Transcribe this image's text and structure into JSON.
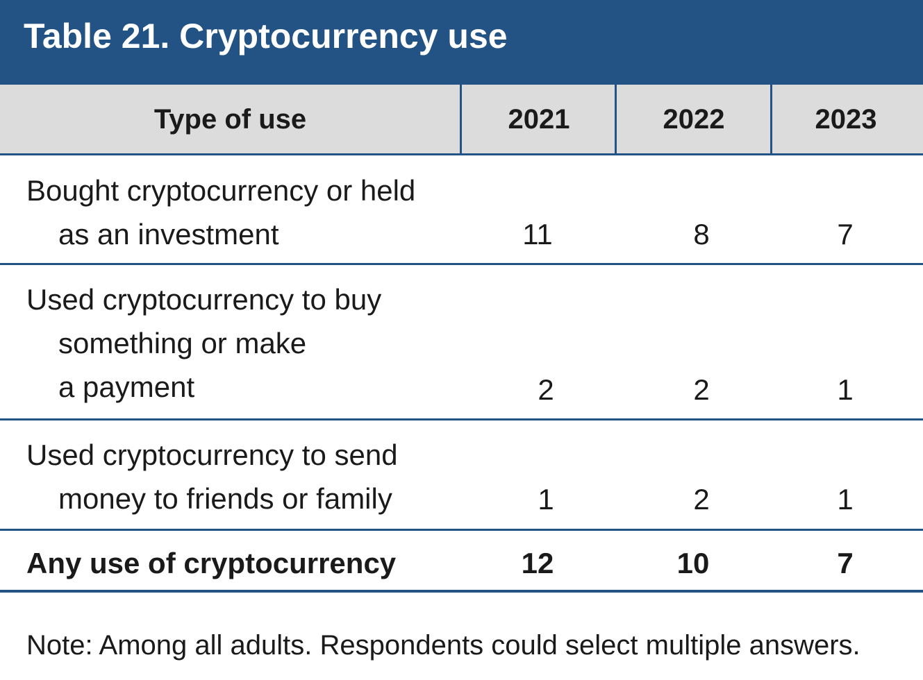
{
  "title": "Table 21. Cryptocurrency use",
  "colors": {
    "header_band": "#235385",
    "column_header_bg": "#dcdcdc",
    "rule": "#235385"
  },
  "columns": [
    "Type of use",
    "2021",
    "2022",
    "2023"
  ],
  "rows": [
    {
      "label_lines": [
        "Bought cryptocurrency or held",
        "as an investment"
      ],
      "values": [
        "11",
        "8",
        "7"
      ]
    },
    {
      "label_lines": [
        "Used cryptocurrency to buy",
        "something or make",
        "a payment"
      ],
      "values": [
        "2",
        "2",
        "1"
      ]
    },
    {
      "label_lines": [
        "Used cryptocurrency to send",
        "money to friends or family"
      ],
      "values": [
        "1",
        "2",
        "1"
      ]
    }
  ],
  "total": {
    "label": "Any use of cryptocurrency",
    "values": [
      "12",
      "10",
      "7"
    ]
  },
  "note": "Note: Among all adults. Respondents could select multiple answers."
}
